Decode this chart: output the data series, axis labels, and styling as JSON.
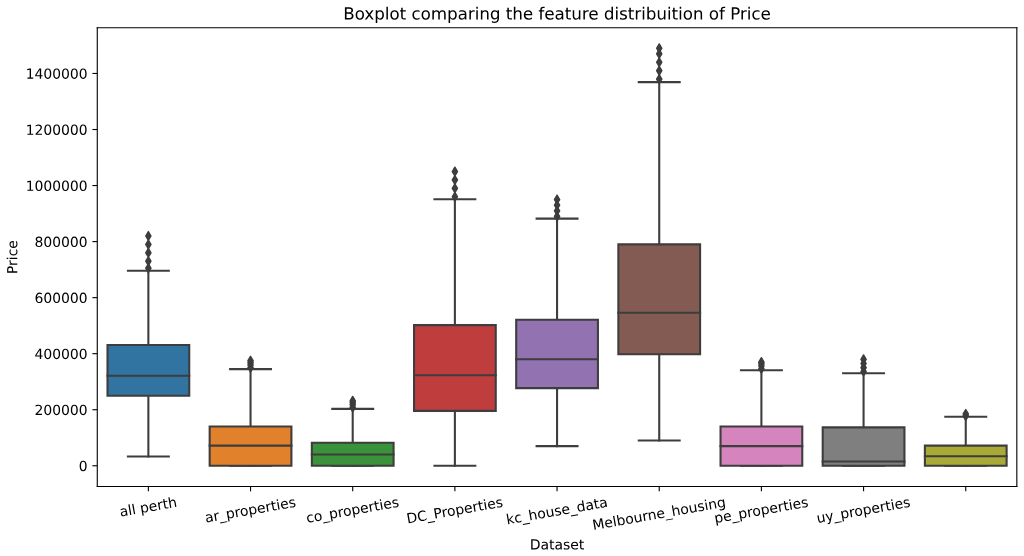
{
  "chart_data": {
    "type": "box",
    "title": "Boxplot comparing the feature distribuition of Price",
    "xlabel": "Dataset",
    "ylabel": "Price",
    "categories": [
      "all perth",
      "ar_properties",
      "co_properties",
      "DC_Properties",
      "kc_house_data",
      "Melbourne_housing",
      "pe_properties",
      "uy_properties",
      null
    ],
    "colors": [
      "#3274a1",
      "#e1812c",
      "#3a923a",
      "#c03d3e",
      "#9372b2",
      "#845b53",
      "#d684bd",
      "#7f7f7f",
      "#a9aa35"
    ],
    "boxes": [
      {
        "low": 33000,
        "q1": 250000,
        "median": 321000,
        "q3": 431000,
        "high": 696000,
        "outliers": [
          705000,
          730000,
          760000,
          790000,
          820000
        ]
      },
      {
        "low": 0,
        "q1": 0,
        "median": 72000,
        "q3": 140000,
        "high": 345000,
        "outliers": [
          350000,
          360000,
          368000,
          375000
        ]
      },
      {
        "low": 0,
        "q1": 0,
        "median": 40000,
        "q3": 82000,
        "high": 203000,
        "outliers": [
          208000,
          218000,
          226000,
          232000
        ]
      },
      {
        "low": 0,
        "q1": 196000,
        "median": 323000,
        "q3": 502000,
        "high": 951000,
        "outliers": [
          960000,
          990000,
          1020000,
          1050000
        ]
      },
      {
        "low": 70000,
        "q1": 277000,
        "median": 380000,
        "q3": 521000,
        "high": 882000,
        "outliers": [
          890000,
          910000,
          930000,
          950000
        ]
      },
      {
        "low": 90000,
        "q1": 398000,
        "median": 546000,
        "q3": 790000,
        "high": 1369000,
        "outliers": [
          1380000,
          1410000,
          1440000,
          1470000,
          1490000
        ]
      },
      {
        "low": 0,
        "q1": 0,
        "median": 70000,
        "q3": 140000,
        "high": 341000,
        "outliers": [
          346000,
          356000,
          364000,
          370000
        ]
      },
      {
        "low": 0,
        "q1": 0,
        "median": 15000,
        "q3": 137000,
        "high": 330000,
        "outliers": [
          336000,
          350000,
          365000,
          380000
        ]
      },
      {
        "low": 0,
        "q1": 0,
        "median": 34000,
        "q3": 72000,
        "high": 175000,
        "outliers": [
          178000,
          185000
        ]
      }
    ],
    "ylim": [
      -74000,
      1563000
    ],
    "yticks": [
      0,
      200000,
      400000,
      600000,
      800000,
      1000000,
      1200000,
      1400000
    ],
    "grid": false,
    "legend": false,
    "marker": "diamond"
  }
}
